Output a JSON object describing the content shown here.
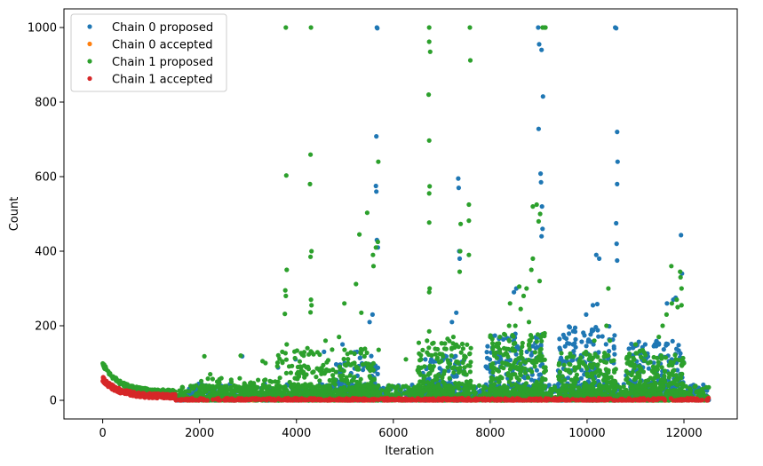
{
  "chart_data": {
    "type": "scatter",
    "title": "",
    "xlabel": "Iteration",
    "ylabel": "Count",
    "xlim": [
      -800,
      13100
    ],
    "ylim": [
      -50,
      1050
    ],
    "xticks": [
      0,
      2000,
      4000,
      6000,
      8000,
      10000,
      12000
    ],
    "yticks": [
      0,
      200,
      400,
      600,
      800,
      1000
    ],
    "grid": false,
    "legend_position": "top-left",
    "series": [
      {
        "name": "Chain 0 proposed",
        "color": "#1f77b4",
        "outliers": [
          [
            5660,
            1000
          ],
          [
            5670,
            998
          ],
          [
            8990,
            1000
          ],
          [
            9010,
            955
          ],
          [
            9060,
            940
          ],
          [
            9090,
            815
          ],
          [
            9000,
            728
          ],
          [
            9040,
            608
          ],
          [
            9050,
            585
          ],
          [
            9070,
            520
          ],
          [
            9080,
            460
          ],
          [
            9060,
            440
          ],
          [
            10580,
            1000
          ],
          [
            10600,
            998
          ],
          [
            10620,
            720
          ],
          [
            10630,
            640
          ],
          [
            10620,
            580
          ],
          [
            10600,
            475
          ],
          [
            10610,
            420
          ],
          [
            10620,
            375
          ],
          [
            5650,
            708
          ],
          [
            5640,
            575
          ],
          [
            5650,
            560
          ],
          [
            5660,
            430
          ],
          [
            5680,
            410
          ],
          [
            7340,
            595
          ],
          [
            7350,
            570
          ],
          [
            7360,
            400
          ],
          [
            7370,
            380
          ],
          [
            11940,
            443
          ],
          [
            11960,
            340
          ],
          [
            10190,
            390
          ],
          [
            10250,
            380
          ],
          [
            8490,
            290
          ],
          [
            8540,
            300
          ],
          [
            9980,
            230
          ],
          [
            10120,
            255
          ],
          [
            10210,
            258
          ],
          [
            11650,
            260
          ],
          [
            11780,
            270
          ],
          [
            11830,
            275
          ],
          [
            7210,
            210
          ],
          [
            7300,
            235
          ],
          [
            5510,
            210
          ],
          [
            5570,
            230
          ],
          [
            4570,
            130
          ],
          [
            4950,
            150
          ],
          [
            5250,
            130
          ],
          [
            3620,
            88
          ],
          [
            3980,
            110
          ],
          [
            2880,
            118
          ],
          [
            6880,
            105
          ],
          [
            8000,
            95
          ],
          [
            9600,
            45
          ],
          [
            10900,
            70
          ],
          [
            11200,
            150
          ],
          [
            11400,
            150
          ]
        ],
        "clusters": [
          {
            "x0": 1500,
            "x1": 12520,
            "y_max": 45,
            "count": 900
          },
          {
            "x0": 4800,
            "x1": 5700,
            "y_max": 130,
            "count": 120
          },
          {
            "x0": 6600,
            "x1": 7500,
            "y_max": 120,
            "count": 120
          },
          {
            "x0": 7900,
            "x1": 9100,
            "y_max": 180,
            "count": 200
          },
          {
            "x0": 9400,
            "x1": 10620,
            "y_max": 200,
            "count": 220
          },
          {
            "x0": 10800,
            "x1": 12000,
            "y_max": 160,
            "count": 200
          }
        ]
      },
      {
        "name": "Chain 0 accepted",
        "color": "#ff7f0e",
        "outliers": [],
        "clusters": [
          {
            "x0": 1500,
            "x1": 12520,
            "y_max": 8,
            "count": 250
          }
        ]
      },
      {
        "name": "Chain 1 proposed",
        "color": "#2ca02c",
        "outliers": [
          [
            3780,
            1000
          ],
          [
            4300,
            1000
          ],
          [
            6740,
            1000
          ],
          [
            7580,
            1000
          ],
          [
            9080,
            1000
          ],
          [
            9120,
            1000
          ],
          [
            9140,
            1000
          ],
          [
            6740,
            962
          ],
          [
            6760,
            935
          ],
          [
            7590,
            912
          ],
          [
            6730,
            820
          ],
          [
            6740,
            697
          ],
          [
            5690,
            640
          ],
          [
            3790,
            603
          ],
          [
            4290,
            659
          ],
          [
            4280,
            580
          ],
          [
            6750,
            574
          ],
          [
            6740,
            555
          ],
          [
            7560,
            525
          ],
          [
            7560,
            482
          ],
          [
            6740,
            477
          ],
          [
            7390,
            473
          ],
          [
            5460,
            503
          ],
          [
            5680,
            425
          ],
          [
            5640,
            410
          ],
          [
            5300,
            445
          ],
          [
            4310,
            400
          ],
          [
            4290,
            385
          ],
          [
            7380,
            400
          ],
          [
            9030,
            500
          ],
          [
            8880,
            520
          ],
          [
            8960,
            525
          ],
          [
            9000,
            480
          ],
          [
            3800,
            350
          ],
          [
            3770,
            295
          ],
          [
            3780,
            280
          ],
          [
            4300,
            270
          ],
          [
            4310,
            255
          ],
          [
            5580,
            390
          ],
          [
            5590,
            360
          ],
          [
            6750,
            300
          ],
          [
            6740,
            290
          ],
          [
            7370,
            345
          ],
          [
            7560,
            390
          ],
          [
            8600,
            305
          ],
          [
            8880,
            380
          ],
          [
            8850,
            350
          ],
          [
            11740,
            360
          ],
          [
            11920,
            345
          ],
          [
            11930,
            330
          ],
          [
            11950,
            300
          ],
          [
            11950,
            255
          ],
          [
            3760,
            232
          ],
          [
            4290,
            236
          ],
          [
            4990,
            260
          ],
          [
            5230,
            312
          ],
          [
            5340,
            235
          ],
          [
            8630,
            245
          ],
          [
            8690,
            280
          ],
          [
            9020,
            320
          ],
          [
            11000,
            150
          ],
          [
            11480,
            170
          ],
          [
            11560,
            200
          ],
          [
            11640,
            230
          ],
          [
            11750,
            260
          ],
          [
            11850,
            270
          ],
          [
            11870,
            250
          ],
          [
            2100,
            118
          ],
          [
            2220,
            70
          ],
          [
            2850,
            120
          ],
          [
            3300,
            105
          ],
          [
            3360,
            100
          ],
          [
            3800,
            150
          ],
          [
            4150,
            120
          ],
          [
            4600,
            160
          ],
          [
            4880,
            170
          ],
          [
            6260,
            110
          ],
          [
            6740,
            185
          ],
          [
            6790,
            90
          ],
          [
            7120,
            165
          ],
          [
            7240,
            170
          ],
          [
            7600,
            140
          ],
          [
            8200,
            170
          ],
          [
            8390,
            200
          ],
          [
            8410,
            260
          ],
          [
            8520,
            200
          ],
          [
            8750,
            300
          ],
          [
            8800,
            210
          ],
          [
            10150,
            160
          ],
          [
            10400,
            200
          ],
          [
            10440,
            300
          ],
          [
            10470,
            160
          ],
          [
            11100,
            80
          ],
          [
            11260,
            100
          ],
          [
            12360,
            28
          ],
          [
            12460,
            35
          ]
        ],
        "clusters": [
          {
            "x0": 1550,
            "x1": 12520,
            "y_max": 40,
            "count": 1500
          },
          {
            "x0": 3600,
            "x1": 5700,
            "y_max": 140,
            "count": 350
          },
          {
            "x0": 6500,
            "x1": 7600,
            "y_max": 160,
            "count": 250
          },
          {
            "x0": 8000,
            "x1": 9150,
            "y_max": 180,
            "count": 300
          },
          {
            "x0": 9400,
            "x1": 10600,
            "y_max": 130,
            "count": 250
          },
          {
            "x0": 10800,
            "x1": 12000,
            "y_max": 140,
            "count": 280
          },
          {
            "x0": 2000,
            "x1": 3800,
            "y_max": 60,
            "count": 200
          }
        ],
        "early_decay": {
          "x0": 0,
          "x1": 1500,
          "y_start": 98,
          "y_end": 22,
          "spread": 5,
          "count": 160
        }
      },
      {
        "name": "Chain 1 accepted",
        "color": "#d62728",
        "outliers": [
          [
            10,
            62
          ],
          [
            20,
            60
          ],
          [
            30,
            58
          ],
          [
            40,
            52
          ],
          [
            60,
            48
          ],
          [
            90,
            45
          ],
          [
            130,
            42
          ]
        ],
        "clusters": [
          {
            "x0": 1500,
            "x1": 12520,
            "y_max": 6,
            "count": 700
          }
        ],
        "early_decay": {
          "x0": 0,
          "x1": 1500,
          "y_start": 56,
          "y_end": 10,
          "spread": 6,
          "count": 300
        }
      }
    ]
  }
}
